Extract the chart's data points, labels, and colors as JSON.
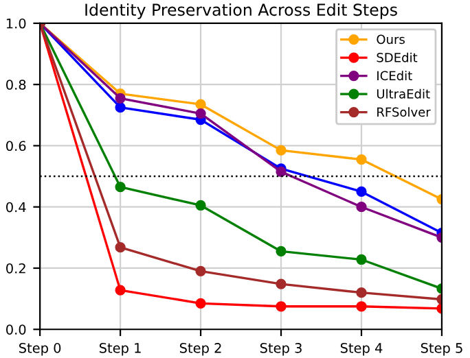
{
  "chart_data": {
    "type": "line",
    "title": "Identity Preservation Across Edit Steps",
    "categories": [
      "Step 0",
      "Step 1",
      "Step 2",
      "Step 3",
      "Step 4",
      "Step 5"
    ],
    "series": [
      {
        "name": "Ours",
        "color": "#ffa500",
        "values": [
          1.0,
          0.77,
          0.735,
          0.585,
          0.555,
          0.425
        ]
      },
      {
        "color": "#0000ff",
        "values": [
          1.0,
          0.725,
          0.685,
          0.525,
          0.45,
          0.315
        ]
      },
      {
        "name": "SDEdit",
        "color": "#ff0000",
        "values": [
          1.0,
          0.128,
          0.085,
          0.075,
          0.075,
          0.068
        ]
      },
      {
        "name": "ICEdit",
        "color": "#800080",
        "values": [
          1.0,
          0.755,
          0.705,
          0.515,
          0.4,
          0.3
        ]
      },
      {
        "name": "UltraEdit",
        "color": "#008000",
        "values": [
          1.0,
          0.465,
          0.405,
          0.255,
          0.228,
          0.133
        ]
      },
      {
        "name": "RFSolver",
        "color": "#a52a2a",
        "values": [
          1.0,
          0.268,
          0.19,
          0.148,
          0.12,
          0.098
        ]
      }
    ],
    "ylim": [
      0,
      1.0
    ],
    "yticks": [
      {
        "value": 0,
        "label": "0.0"
      },
      0.2,
      0.4,
      0.6,
      0.8,
      {
        "value": 1,
        "label": "1.0"
      }
    ],
    "ref_lines": [
      {
        "axis": "y",
        "value": 0.5,
        "color": "#000000",
        "line_style": "dotted"
      }
    ],
    "grid": true,
    "legend": "top right",
    "marker": "circle",
    "line_style": "solid"
  }
}
